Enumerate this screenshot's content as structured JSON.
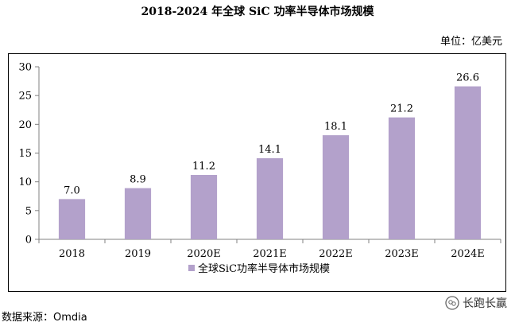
{
  "title": "2018-2024 年全球 SiC 功率半导体市场规模",
  "unit": "单位：亿美元",
  "source": "数据来源：Omdia",
  "watermark": "长跑长赢",
  "colors": {
    "bar": "#b3a1cb",
    "axis": "#808080"
  },
  "chart_data": {
    "type": "bar",
    "categories": [
      "2018",
      "2019",
      "2020E",
      "2021E",
      "2022E",
      "2023E",
      "2024E"
    ],
    "series": [
      {
        "name": "全球SiC功率半导体市场规模",
        "values": [
          7.0,
          8.9,
          11.2,
          14.1,
          18.1,
          21.2,
          26.6
        ]
      }
    ],
    "ylim": [
      0,
      30
    ],
    "yticks": [
      0,
      5,
      10,
      15,
      20,
      25,
      30
    ],
    "xlabel": "",
    "ylabel": "",
    "grid": false,
    "legend": "bottom"
  }
}
